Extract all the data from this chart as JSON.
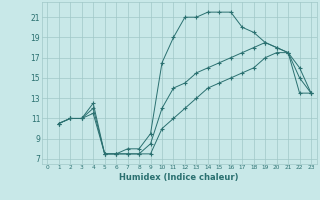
{
  "xlabel": "Humidex (Indice chaleur)",
  "bg_color": "#c8e8e8",
  "grid_color": "#a0c8c8",
  "line_color": "#2a7070",
  "xlim": [
    -0.5,
    23.5
  ],
  "ylim": [
    6.5,
    22.5
  ],
  "xticks": [
    0,
    1,
    2,
    3,
    4,
    5,
    6,
    7,
    8,
    9,
    10,
    11,
    12,
    13,
    14,
    15,
    16,
    17,
    18,
    19,
    20,
    21,
    22,
    23
  ],
  "yticks": [
    7,
    9,
    11,
    13,
    15,
    17,
    19,
    21
  ],
  "line1_x": [
    1,
    2,
    3,
    4,
    5,
    6,
    7,
    8,
    9,
    10,
    11,
    12,
    13,
    14,
    15,
    16,
    17,
    18,
    19,
    20,
    21,
    22,
    23
  ],
  "line1_y": [
    10.5,
    11,
    11,
    11.5,
    7.5,
    7.5,
    8.0,
    8.0,
    9.5,
    16.5,
    19.0,
    21.0,
    21.0,
    21.5,
    21.5,
    21.5,
    20.0,
    19.5,
    18.5,
    18.0,
    17.5,
    13.5,
    13.5
  ],
  "line2_x": [
    1,
    2,
    3,
    4,
    5,
    6,
    7,
    8,
    9,
    10,
    11,
    12,
    13,
    14,
    15,
    16,
    17,
    18,
    19,
    20,
    21,
    22,
    23
  ],
  "line2_y": [
    10.5,
    11,
    11,
    12.0,
    7.5,
    7.5,
    7.5,
    7.5,
    8.5,
    12.0,
    14.0,
    14.5,
    15.5,
    16.0,
    16.5,
    17.0,
    17.5,
    18.0,
    18.5,
    18.0,
    17.5,
    16.0,
    13.5
  ],
  "line3_x": [
    1,
    2,
    3,
    4,
    5,
    6,
    7,
    8,
    9,
    10,
    11,
    12,
    13,
    14,
    15,
    16,
    17,
    18,
    19,
    20,
    21,
    22,
    23
  ],
  "line3_y": [
    10.5,
    11,
    11,
    12.5,
    7.5,
    7.5,
    7.5,
    7.5,
    7.5,
    10.0,
    11.0,
    12.0,
    13.0,
    14.0,
    14.5,
    15.0,
    15.5,
    16.0,
    17.0,
    17.5,
    17.5,
    15.0,
    13.5
  ]
}
